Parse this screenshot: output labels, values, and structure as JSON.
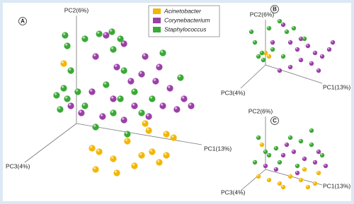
{
  "legend": [
    "Acinetobacter",
    "Corynebacterium",
    "Staphylococcus"
  ],
  "chart_data": [
    {
      "type": "scatter",
      "label": "A",
      "x_label": "PC1(13%)",
      "y_label": "PC2(6%)",
      "z_label": "PC3(4%)",
      "xlim": [
        0,
        100
      ],
      "ylim": [
        0,
        100
      ],
      "series": [
        {
          "name": "Acinetobacter",
          "color": "#f2b705",
          "x": [
            25,
            66.1,
            67.9,
            57.1,
            76.8,
            80.4,
            42.9,
            41.1,
            50,
            64.3,
            69.6,
            73.2,
            76.8,
            51.8,
            39.3,
            60.7
          ],
          "values": [
            68,
            34,
            30,
            24,
            28,
            26,
            18,
            8,
            14,
            16,
            18,
            12,
            16,
            6,
            20,
            10
          ]
        },
        {
          "name": "Corynebacterium",
          "color": "#9b3fa8",
          "x": [
            46.4,
            55.4,
            41.1,
            66.1,
            73.2,
            51.8,
            64.3,
            78.6,
            85.7,
            89.3,
            75,
            60.7,
            67.9,
            50,
            28.6,
            33.9,
            39.3,
            58.9,
            71.4,
            44.6,
            82.1,
            55.4
          ],
          "values": [
            84,
            79.2,
            72,
            72,
            66,
            66,
            62,
            54,
            48,
            44,
            44,
            44,
            38,
            48,
            44,
            40,
            52,
            58,
            58,
            38,
            42,
            36
          ]
        },
        {
          "name": "Staphylococcus",
          "color": "#3aa935",
          "x": [
            25.7,
            26.8,
            35.7,
            42.9,
            50,
            49.3,
            28.6,
            25,
            21.4,
            26.8,
            32.1,
            23.2,
            46.4,
            53.6,
            60.7,
            55.4,
            69.6,
            50,
            35.7,
            41.1,
            57.1,
            64.3,
            53.6,
            75,
            83.9
          ],
          "values": [
            84,
            78,
            82,
            84.8,
            76,
            86,
            64,
            54,
            50,
            48,
            52,
            42,
            56,
            48,
            52,
            64,
            48,
            40,
            44,
            32,
            28,
            40,
            82,
            74,
            60
          ]
        }
      ]
    },
    {
      "type": "scatter",
      "label": "B",
      "x_label": "PC1(13%)",
      "y_label": "PC2(6%)",
      "z_label": "PC3(4%)",
      "xlim": [
        0,
        100
      ],
      "ylim": [
        0,
        100
      ],
      "series": [
        {
          "color": "#f2b705",
          "x": [
            36.1,
            38.9
          ],
          "values": [
            50,
            46.2
          ]
        },
        {
          "color": "#9b3fa8",
          "x": [
            55.6,
            61.1,
            69.4,
            75,
            80.6,
            86.1,
            50,
            63.9,
            72.2,
            88.9,
            55.6,
            41.7,
            47.2,
            77.8,
            63.9
          ],
          "values": [
            61.5,
            53.8,
            57.7,
            50,
            46.2,
            53.8,
            80.8,
            42.3,
            38.5,
            61.5,
            34.6,
            61.5,
            30.8,
            30.8,
            65.4
          ]
        },
        {
          "color": "#3aa935",
          "x": [
            25,
            27.8,
            33.3,
            34.4,
            30.6,
            41.7,
            52.8,
            58.3,
            66.7,
            50,
            38.9,
            47.2
          ],
          "values": [
            73.1,
            61.5,
            50,
            42.3,
            46.2,
            53.8,
            73.1,
            76.9,
            65.4,
            46.2,
            76.9,
            84.6
          ]
        }
      ]
    },
    {
      "type": "scatter",
      "label": "C",
      "x_label": "PC1(13%)",
      "y_label": "PC2(6%)",
      "z_label": "PC3(4%)",
      "xlim": [
        0,
        100
      ],
      "ylim": [
        0,
        100
      ],
      "series": [
        {
          "color": "#f2b705",
          "x": [
            30.6,
            38.9,
            47.2,
            55.6,
            63.9,
            69.4,
            75,
            66.7,
            50,
            33.3,
            77.8
          ],
          "values": [
            23.1,
            19.2,
            15.4,
            23.1,
            19.2,
            11.5,
            15.4,
            30.8,
            11.5,
            57.7,
            26.9
          ]
        },
        {
          "color": "#9b3fa8",
          "x": [
            50,
            58.3,
            66.7,
            75,
            83.3,
            44.4,
            61.1,
            36.1,
            52.8,
            77.8
          ],
          "values": [
            46.2,
            50,
            42.3,
            38.5,
            34.6,
            30.8,
            26.9,
            34.6,
            57.7,
            50
          ]
        },
        {
          "color": "#3aa935",
          "x": [
            30.6,
            36.1,
            38.9,
            44.4,
            55.6,
            63.9,
            72.2,
            47.2,
            80.6,
            61.1,
            27.8,
            72.2
          ],
          "values": [
            65.4,
            50,
            46.2,
            53.8,
            65.4,
            61.5,
            57.7,
            38.5,
            46.2,
            34.6,
            38.5,
            73.1
          ]
        }
      ]
    }
  ]
}
